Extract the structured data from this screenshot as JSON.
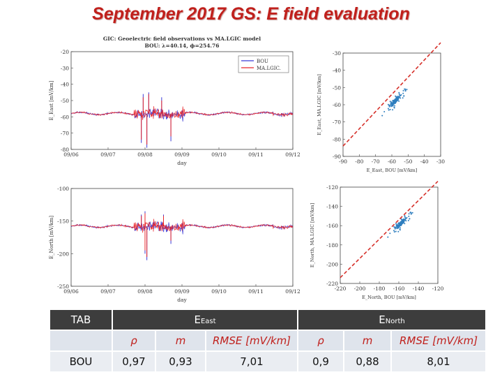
{
  "title": "September 2017 GS: E field evaluation",
  "chart_data": [
    {
      "type": "line",
      "title": "GIC: Geoelectric field observations vs MA.LGIC model",
      "subtitle": "BOU: λ=40.14, ϕ=254.76",
      "xlabel": "day",
      "ylabel": "E_East [mV/km]",
      "x_ticks": [
        "09/06",
        "09/07",
        "09/08",
        "09/09",
        "09/10",
        "09/11",
        "09/12"
      ],
      "y_ticks": [
        "-20",
        "-30",
        "-40",
        "-50",
        "-60",
        "-70",
        "-80"
      ],
      "xlim": [
        0,
        6
      ],
      "ylim": [
        -80,
        -20
      ],
      "legend": "top-right",
      "series": [
        {
          "name": "BOU",
          "color": "#3b3bd6",
          "baseline": -58,
          "spikes": [
            [
              1.9,
              -76
            ],
            [
              2.05,
              -79
            ],
            [
              2.7,
              -75
            ],
            [
              1.95,
              -46
            ],
            [
              2.1,
              -45
            ],
            [
              2.45,
              -48
            ]
          ]
        },
        {
          "name": "MA.LGIC.",
          "color": "#e8262a",
          "baseline": -58,
          "spikes": [
            [
              1.9,
              -74
            ],
            [
              2.05,
              -77
            ],
            [
              2.7,
              -72
            ],
            [
              1.95,
              -48
            ],
            [
              2.1,
              -46
            ],
            [
              2.45,
              -50
            ]
          ]
        }
      ]
    },
    {
      "type": "scatter",
      "xlabel": "E_East, BOU [mV/km]",
      "ylabel": "E_East, MA.LGIC [mV/km]",
      "x_ticks": [
        "-90",
        "-80",
        "-70",
        "-60",
        "-50",
        "-40",
        "-30"
      ],
      "y_ticks": [
        "-30",
        "-40",
        "-50",
        "-60",
        "-70",
        "-80",
        "-90"
      ],
      "xlim": [
        -90,
        -30
      ],
      "ylim": [
        -90,
        -30
      ],
      "color": "#2f7fbf",
      "fit_line_color": "#d6302a",
      "cluster_center": [
        -58,
        -58
      ],
      "fit_line": [
        [
          -90,
          -84
        ],
        [
          -30,
          -24
        ]
      ]
    },
    {
      "type": "line",
      "xlabel": "day",
      "ylabel": "E_North [mV/km]",
      "x_ticks": [
        "09/06",
        "09/07",
        "09/08",
        "09/09",
        "09/10",
        "09/11",
        "09/12"
      ],
      "y_ticks": [
        "-100",
        "-150",
        "-200",
        "-250"
      ],
      "xlim": [
        0,
        6
      ],
      "ylim": [
        -250,
        -100
      ],
      "series": [
        {
          "name": "BOU",
          "color": "#3b3bd6",
          "baseline": -158,
          "spikes": [
            [
              2.0,
              -200
            ],
            [
              2.05,
              -210
            ],
            [
              2.7,
              -185
            ],
            [
              2.0,
              -135
            ],
            [
              2.5,
              -140
            ],
            [
              1.9,
              -140
            ]
          ]
        },
        {
          "name": "MA.LGIC.",
          "color": "#e8262a",
          "baseline": -158,
          "spikes": [
            [
              2.0,
              -195
            ],
            [
              2.05,
              -205
            ],
            [
              2.7,
              -180
            ],
            [
              2.0,
              -138
            ],
            [
              2.5,
              -142
            ],
            [
              1.9,
              -142
            ]
          ]
        }
      ]
    },
    {
      "type": "scatter",
      "xlabel": "E_North, BOU [mV/km]",
      "ylabel": "E_North, MA.LGIC [mV/km]",
      "x_ticks": [
        "-220",
        "-200",
        "-180",
        "-160",
        "-140",
        "-120"
      ],
      "y_ticks": [
        "-120",
        "-140",
        "-160",
        "-180",
        "-200",
        "-220"
      ],
      "xlim": [
        -220,
        -120
      ],
      "ylim": [
        -220,
        -120
      ],
      "color": "#2f7fbf",
      "fit_line_color": "#d6302a",
      "cluster_center": [
        -158,
        -158
      ],
      "fit_line": [
        [
          -220,
          -214
        ],
        [
          -120,
          -114
        ]
      ]
    }
  ],
  "table": {
    "tab_label": "TAB",
    "east_label": "E",
    "east_sub": "East",
    "north_label": "E",
    "north_sub": "North",
    "headers": [
      "ρ",
      "m",
      "RMSE [mV/km]",
      "ρ",
      "m",
      "RMSE [mV/km]"
    ],
    "row_label": "BOU",
    "values": [
      "0,97",
      "0,93",
      "7,01",
      "0,9",
      "0,88",
      "8,01"
    ]
  }
}
